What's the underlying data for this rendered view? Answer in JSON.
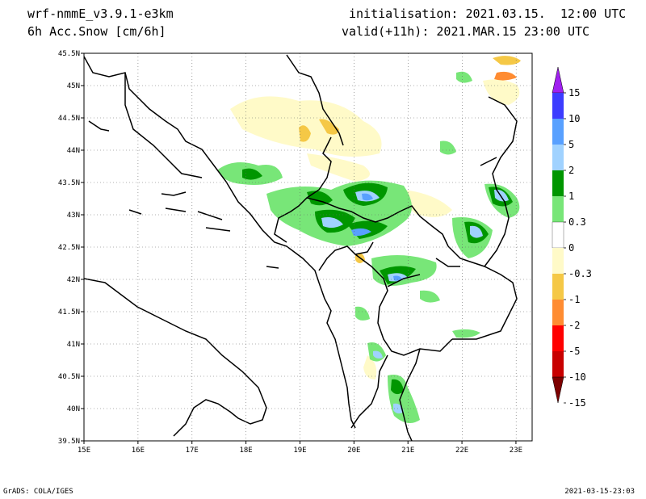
{
  "header": {
    "model": "wrf-nmmE_v3.9.1-e3km",
    "variable": "6h Acc.Snow [cm/6h]",
    "initialisation": "initialisation: 2021.03.15.  12:00 UTC",
    "valid": "valid(+11h): 2021.MAR.15 23:00 UTC"
  },
  "footer": {
    "credit": "GrADS: COLA/IGES",
    "timestamp": "2021-03-15-23:03"
  },
  "map": {
    "lon_range": [
      15,
      23.3
    ],
    "lat_range": [
      39.5,
      45.5
    ],
    "lon_ticks": [
      "15E",
      "16E",
      "17E",
      "18E",
      "19E",
      "20E",
      "21E",
      "22E",
      "23E"
    ],
    "lat_ticks": [
      "39.5N",
      "40N",
      "40.5N",
      "41N",
      "41.5N",
      "42N",
      "42.5N",
      "43N",
      "43.5N",
      "44N",
      "44.5N",
      "45N",
      "45.5N"
    ],
    "grid": "dotted"
  },
  "colorbar": {
    "labels": [
      "15",
      "10",
      "5",
      "2",
      "1",
      "0.3",
      "0",
      "-0.3",
      "-1",
      "-2",
      "-5",
      "-10",
      "-15"
    ],
    "colors": [
      "#a020f0",
      "#3c3cff",
      "#58a0ff",
      "#a0d2ff",
      "#009600",
      "#78e678",
      "#ffffff",
      "#fffac8",
      "#f5c846",
      "#ff8c32",
      "#ff0000",
      "#c80000",
      "#7d0000"
    ]
  }
}
